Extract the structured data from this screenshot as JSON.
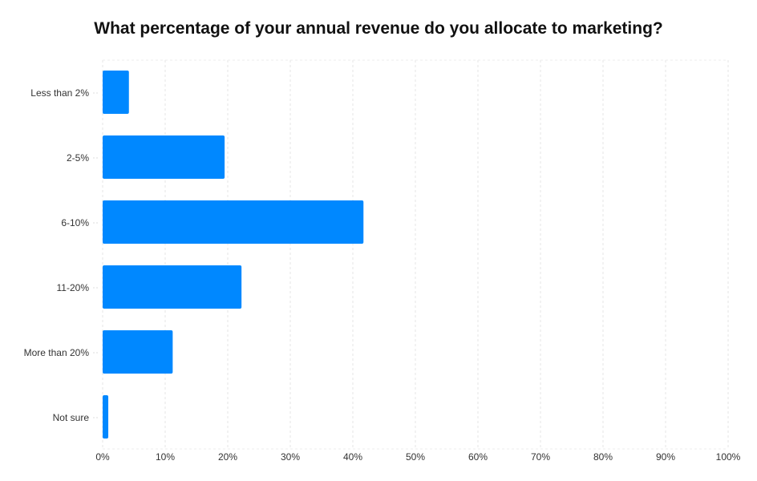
{
  "chart_data": {
    "type": "bar",
    "orientation": "horizontal",
    "title": "What percentage of your annual revenue do you allocate to marketing?",
    "categories": [
      "Less than 2%",
      "2-5%",
      "6-10%",
      "11-20%",
      "More than 20%",
      "Not sure"
    ],
    "values": [
      4.2,
      19.5,
      41.7,
      22.2,
      11.2,
      0.9
    ],
    "xlabel": "",
    "ylabel": "",
    "xlim": [
      0,
      100
    ],
    "xticks": [
      "0%",
      "10%",
      "20%",
      "30%",
      "40%",
      "50%",
      "60%",
      "70%",
      "80%",
      "90%",
      "100%"
    ],
    "grid": true,
    "color": "#0088ff"
  }
}
